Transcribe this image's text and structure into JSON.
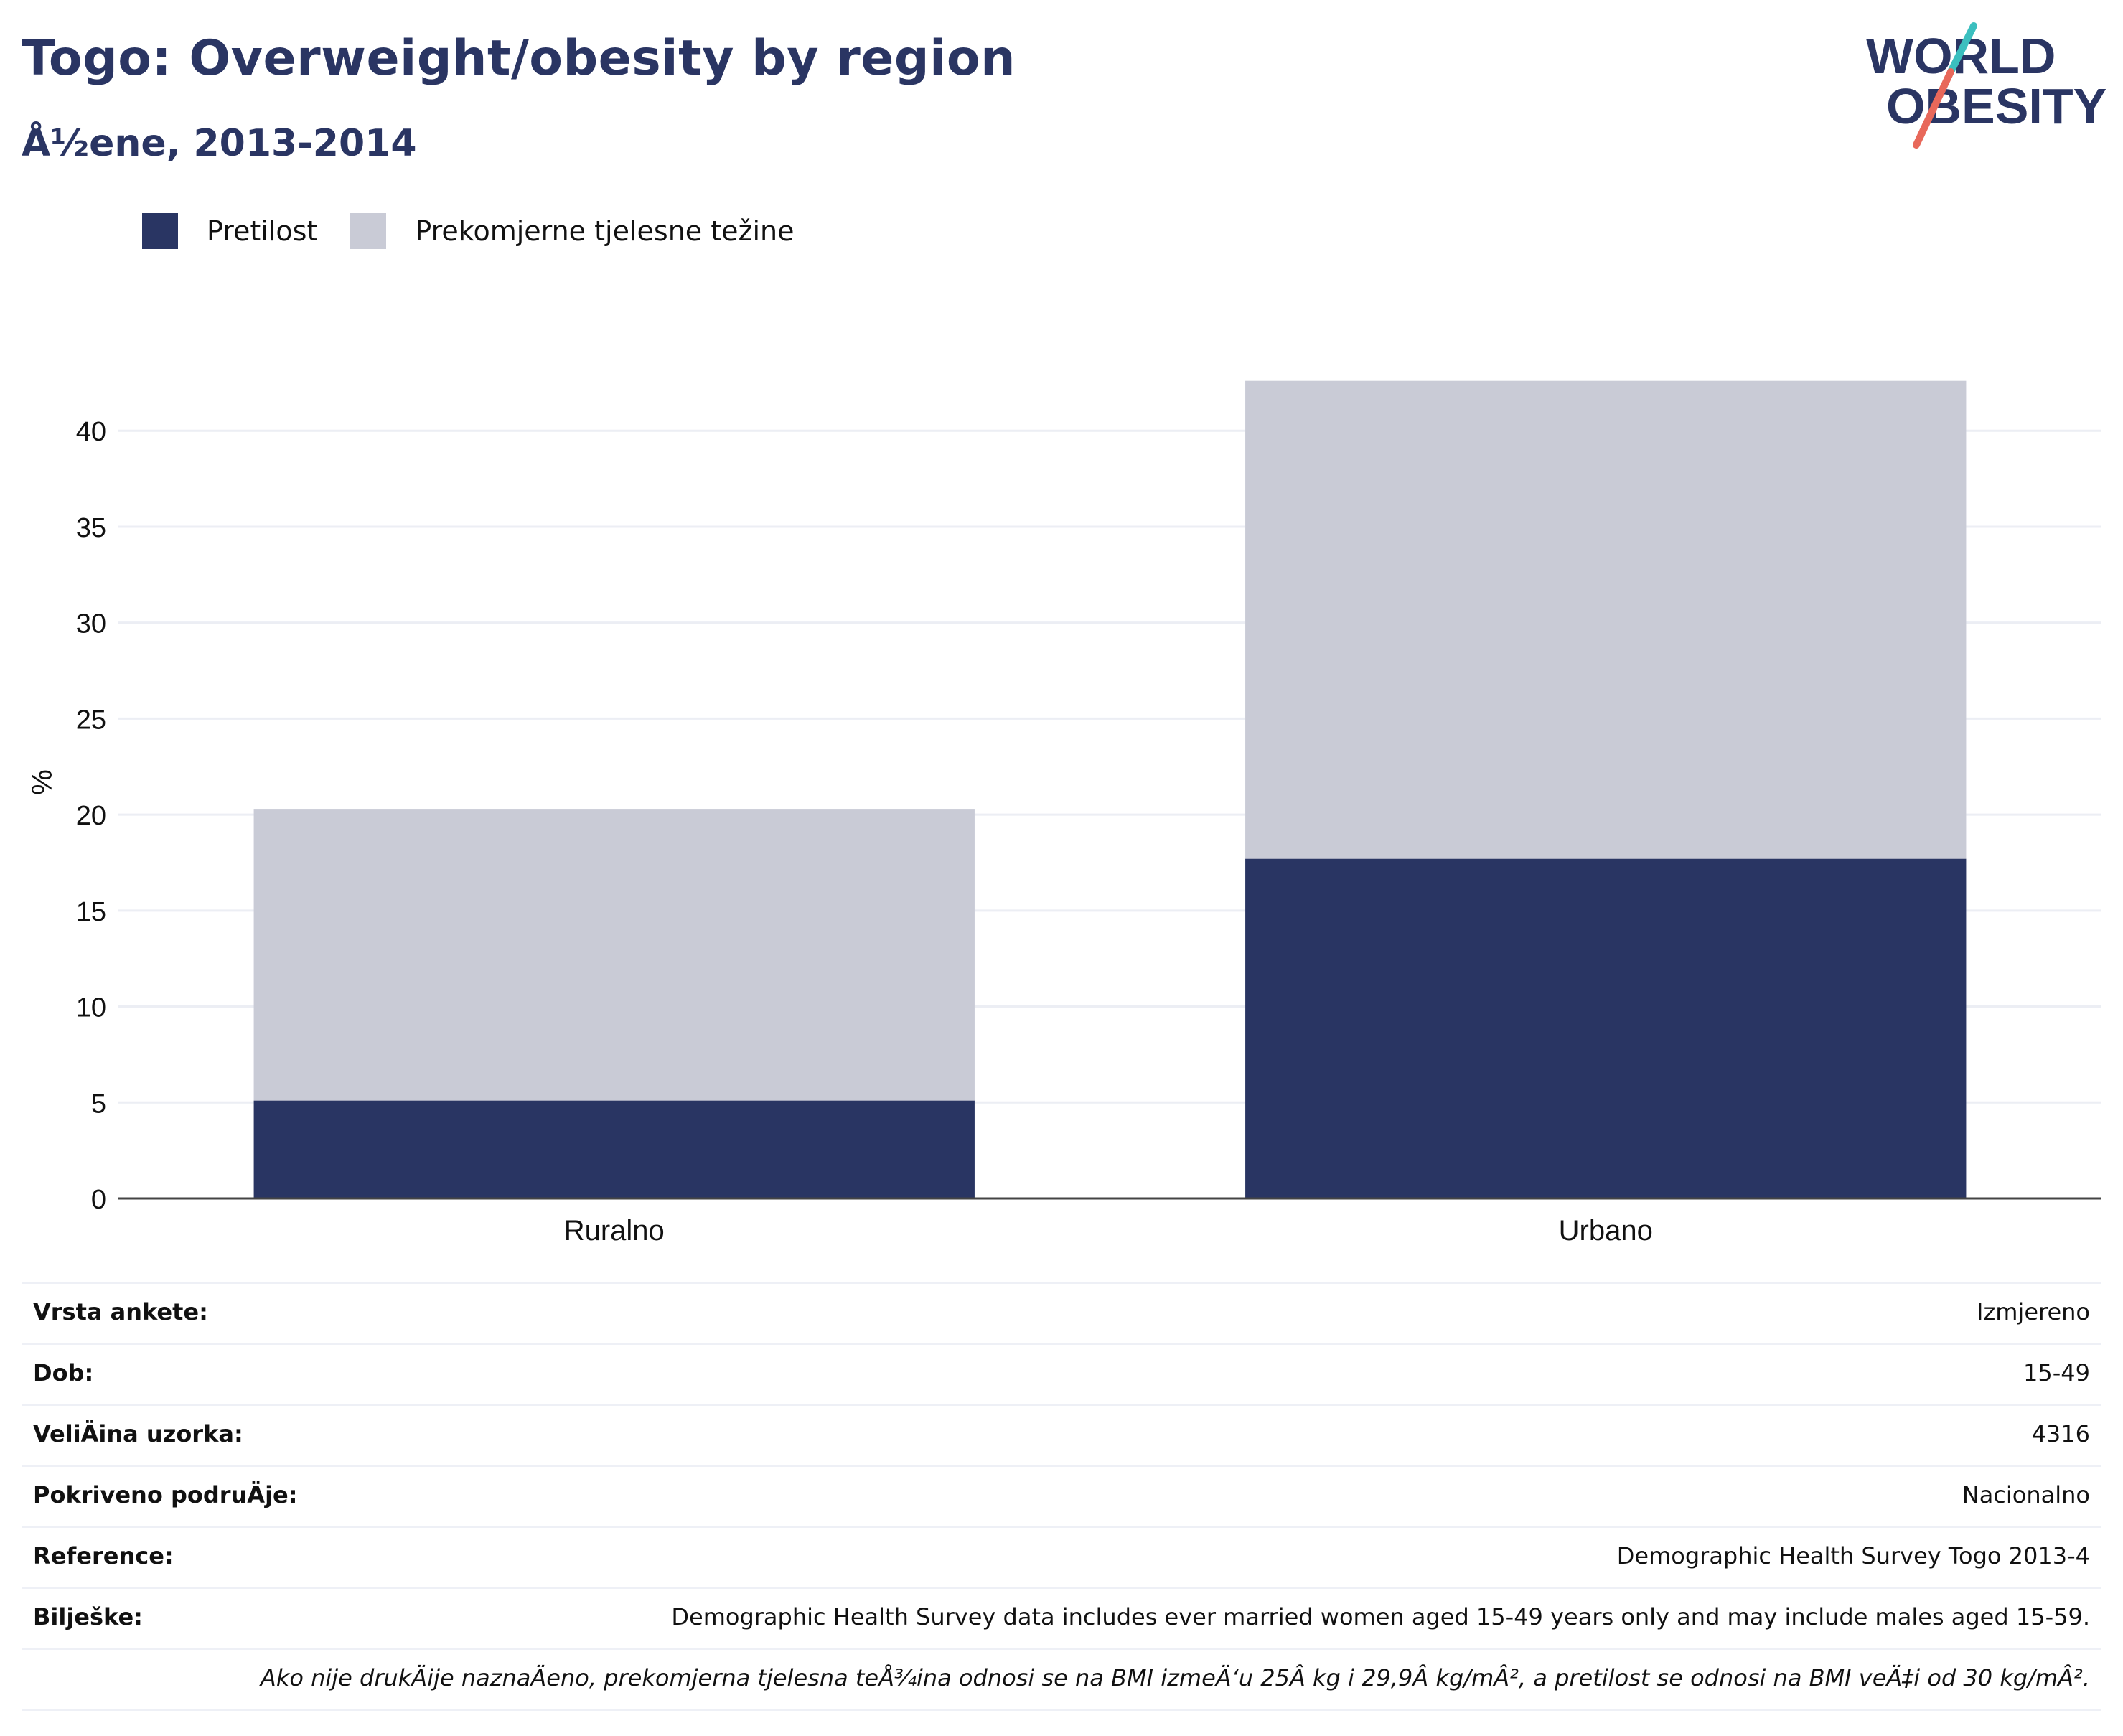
{
  "header": {
    "title": "Togo: Overweight/obesity by region",
    "subtitle": "Å½ene, 2013-2014"
  },
  "logo": {
    "line1": "WORLD",
    "line2": "OBESITY",
    "colors": {
      "text": "#2a3563",
      "slash_teal": "#3bbfbf",
      "slash_coral": "#e8685a"
    }
  },
  "legend": [
    {
      "label": "Pretilost",
      "color": "#293563"
    },
    {
      "label": "Prekomjerne tjelesne težine",
      "color": "#c9cbd6"
    }
  ],
  "chart_data": {
    "type": "bar",
    "stacked": true,
    "categories": [
      "Ruralno",
      "Urbano"
    ],
    "series": [
      {
        "name": "Pretilost",
        "values": [
          5.1,
          17.7
        ],
        "color": "#293563"
      },
      {
        "name": "Prekomjerne tjelesne težine",
        "values": [
          15.2,
          24.9
        ],
        "color": "#c9cbd6"
      }
    ],
    "xlabel": "",
    "ylabel": "%",
    "ylim": [
      0,
      43
    ],
    "yticks": [
      0,
      5,
      10,
      15,
      20,
      25,
      30,
      35,
      40
    ],
    "grid": true,
    "legend_position": "top-left"
  },
  "info": {
    "rows": [
      {
        "key": "Vrsta ankete:",
        "value": "Izmjereno"
      },
      {
        "key": "Dob:",
        "value": "15-49"
      },
      {
        "key": "VeliÄ\bina uzorka:",
        "value": "4316"
      },
      {
        "key": "Pokriveno podruÄ\bje:",
        "value": "Nacionalno"
      },
      {
        "key": "Reference:",
        "value": "Demographic Health Survey Togo 2013-4"
      },
      {
        "key": "Bilješke:",
        "value": "Demographic Health Survey data includes ever married women aged 15-49 years only and may include males aged 15-59."
      }
    ],
    "footnote": "Ako nije drukÄ\bije naznaÄ\beno, prekomjerna tjelesna teÅ¾ina odnosi se na BMI izmeÄ‘u 25Â kg i 29,9Â kg/mÂ², a pretilost se odnosi na BMI veÄ‡i od 30 kg/mÂ²."
  }
}
